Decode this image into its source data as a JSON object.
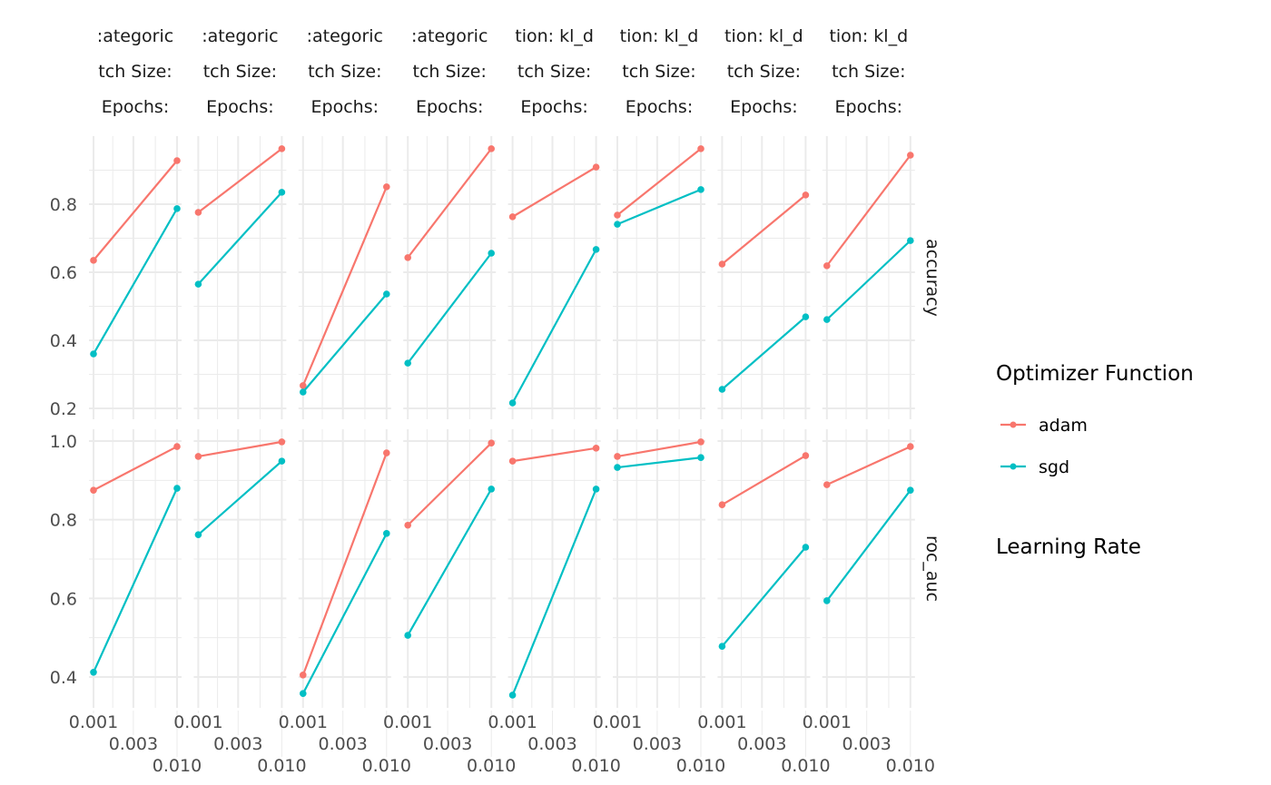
{
  "chart_data": {
    "type": "line",
    "xlabel": "Learning Rate",
    "x_scale": "log10",
    "x_ticks": [
      0.001,
      0.003,
      0.01
    ],
    "x_tick_labels": [
      "0.001",
      "0.003",
      "0.010"
    ],
    "legend": {
      "title": "Optimizer Function",
      "placement": "right",
      "entries": [
        "adam",
        "sgd"
      ]
    },
    "colors": {
      "adam": "#F8766D",
      "sgd": "#00BFC4",
      "grid": "#EBEBEB",
      "text": "#4D4D4D"
    },
    "rows": [
      {
        "label": "accuracy",
        "ylim": [
          0.2,
          0.97
        ],
        "ticks": [
          0.2,
          0.4,
          0.6,
          0.8
        ],
        "tick_labels": [
          "0.2",
          "0.4",
          "0.6",
          "0.8"
        ]
      },
      {
        "label": "roc_auc",
        "ylim": [
          0.35,
          1.0
        ],
        "ticks": [
          0.4,
          0.6,
          0.8,
          1.0
        ],
        "tick_labels": [
          "0.4",
          "0.6",
          "0.8",
          "1.0"
        ]
      }
    ],
    "columns": [
      {
        "strip": [
          ":ategoric",
          "tch Size:",
          "Epochs: "
        ]
      },
      {
        "strip": [
          ":ategoric",
          "tch Size:",
          "Epochs: "
        ]
      },
      {
        "strip": [
          ":ategoric",
          "tch Size:",
          "Epochs: "
        ]
      },
      {
        "strip": [
          ":ategoric",
          "tch Size:",
          "Epochs: "
        ]
      },
      {
        "strip": [
          "tion: kl_d",
          "tch Size:",
          "Epochs: "
        ]
      },
      {
        "strip": [
          "tion: kl_d",
          "tch Size:",
          "Epochs: "
        ]
      },
      {
        "strip": [
          "tion: kl_d",
          "tch Size:",
          "Epochs: "
        ]
      },
      {
        "strip": [
          "tion: kl_d",
          "tch Size:",
          "Epochs: "
        ]
      }
    ],
    "x": [
      0.001,
      0.01
    ],
    "series": {
      "accuracy": {
        "adam": [
          [
            0.635,
            0.928
          ],
          [
            0.776,
            0.963
          ],
          [
            0.267,
            0.851
          ],
          [
            0.643,
            0.963
          ],
          [
            0.763,
            0.909
          ],
          [
            0.768,
            0.963
          ],
          [
            0.624,
            0.827
          ],
          [
            0.619,
            0.944
          ]
        ],
        "sgd": [
          [
            0.36,
            0.787
          ],
          [
            0.565,
            0.835
          ],
          [
            0.248,
            0.536
          ],
          [
            0.333,
            0.656
          ],
          [
            0.216,
            0.667
          ],
          [
            0.741,
            0.843
          ],
          [
            0.256,
            0.469
          ],
          [
            0.461,
            0.693
          ]
        ]
      },
      "roc_auc": {
        "adam": [
          [
            0.875,
            0.986
          ],
          [
            0.961,
            0.998
          ],
          [
            0.405,
            0.97
          ],
          [
            0.786,
            0.995
          ],
          [
            0.949,
            0.982
          ],
          [
            0.961,
            0.998
          ],
          [
            0.838,
            0.963
          ],
          [
            0.889,
            0.986
          ]
        ],
        "sgd": [
          [
            0.412,
            0.88
          ],
          [
            0.762,
            0.949
          ],
          [
            0.358,
            0.765
          ],
          [
            0.506,
            0.878
          ],
          [
            0.354,
            0.878
          ],
          [
            0.933,
            0.958
          ],
          [
            0.478,
            0.73
          ],
          [
            0.594,
            0.875
          ]
        ]
      }
    }
  }
}
